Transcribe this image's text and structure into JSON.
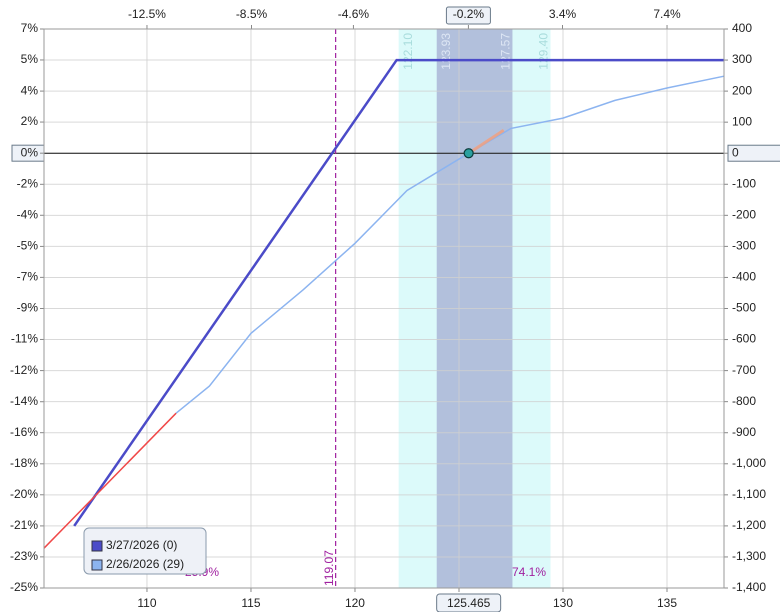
{
  "chart_data": {
    "type": "line",
    "xlim": [
      105.05,
      137.74
    ],
    "xticks": [
      110,
      115,
      120,
      125,
      130,
      135
    ],
    "x2lim": [
      -16.44,
      9.58
    ],
    "x2ticks": [
      {
        "value": -12.5,
        "label": "-12.5%"
      },
      {
        "value": -8.5,
        "label": "-8.5%"
      },
      {
        "value": -4.6,
        "label": "-4.6%"
      },
      {
        "value": -0.2,
        "label": "-0.2%"
      },
      {
        "value": 3.4,
        "label": "3.4%"
      },
      {
        "value": 7.4,
        "label": "7.4%"
      }
    ],
    "ylim": [
      -1400,
      400
    ],
    "yticks": [
      400,
      300,
      200,
      100,
      0,
      -100,
      -200,
      -300,
      -400,
      -500,
      -600,
      -700,
      -800,
      -900,
      {
        "value": -1000,
        "label": "-1,000"
      },
      {
        "value": -1100,
        "label": "-1,100"
      },
      {
        "value": -1200,
        "label": "-1,200"
      },
      {
        "value": -1300,
        "label": "-1,300"
      },
      {
        "value": -1400,
        "label": "-1,400"
      }
    ],
    "y2lim": [
      -25,
      7.14
    ],
    "y2ticks": [
      {
        "value": 7.14,
        "label": "7%"
      },
      {
        "value": 5.36,
        "label": "5%"
      },
      {
        "value": 3.57,
        "label": "4%"
      },
      {
        "value": 1.79,
        "label": "2%"
      },
      {
        "value": 0,
        "label": "0%"
      },
      {
        "value": -1.79,
        "label": "-2%"
      },
      {
        "value": -3.57,
        "label": "-4%"
      },
      {
        "value": -5.36,
        "label": "-5%"
      },
      {
        "value": -7.14,
        "label": "-7%"
      },
      {
        "value": -8.93,
        "label": "-9%"
      },
      {
        "value": -10.71,
        "label": "-11%"
      },
      {
        "value": -12.5,
        "label": "-12%"
      },
      {
        "value": -14.29,
        "label": "-14%"
      },
      {
        "value": -16.07,
        "label": "-16%"
      },
      {
        "value": -17.86,
        "label": "-18%"
      },
      {
        "value": -19.64,
        "label": "-20%"
      },
      {
        "value": -21.43,
        "label": "-21%"
      },
      {
        "value": -23.21,
        "label": "-23%"
      },
      {
        "value": -25,
        "label": "-25%"
      }
    ],
    "grid": true,
    "series": [
      {
        "name": "3/27/2026 (0)",
        "color": "#4b4bc8",
        "x": [
          106.5,
          122,
          137.74
        ],
        "values": [
          -1200,
          300,
          300
        ]
      },
      {
        "name": "2/26/2026 (29)",
        "color": "#8cb4f0",
        "x": [
          111.4,
          113,
          115,
          117.5,
          120,
          122.5,
          125.465,
          127.5,
          130,
          132.5,
          135,
          137.74
        ],
        "values": [
          -837,
          -750,
          -580,
          -440,
          -290,
          -120,
          0,
          80,
          113,
          170,
          210,
          248
        ]
      },
      {
        "color": "#f04848",
        "x": [
          105.05,
          111.4
        ],
        "values": [
          -1272,
          -837
        ]
      },
      {
        "color": "#f0a080",
        "x": [
          125.465,
          127.15
        ],
        "values": [
          0,
          74
        ]
      }
    ],
    "ranges": [
      {
        "from": {
          "value": 122.1,
          "label": "122.10"
        },
        "to": {
          "value": 129.4,
          "label": "129.40"
        },
        "color": "#dcfafa",
        "text_color": "#a8dcdc"
      },
      {
        "from": {
          "value": 123.93,
          "label": "123.93"
        },
        "to": {
          "value": 127.57,
          "label": "127.57"
        },
        "color": "#b2c0dc",
        "text_color": "#dde6f4"
      }
    ],
    "breakeven": 119.07,
    "current_price": 125.465,
    "probabilities": {
      "values": [
        25.9,
        74.1
      ],
      "value_labels": [
        "25.9%",
        "74.1%"
      ]
    }
  }
}
